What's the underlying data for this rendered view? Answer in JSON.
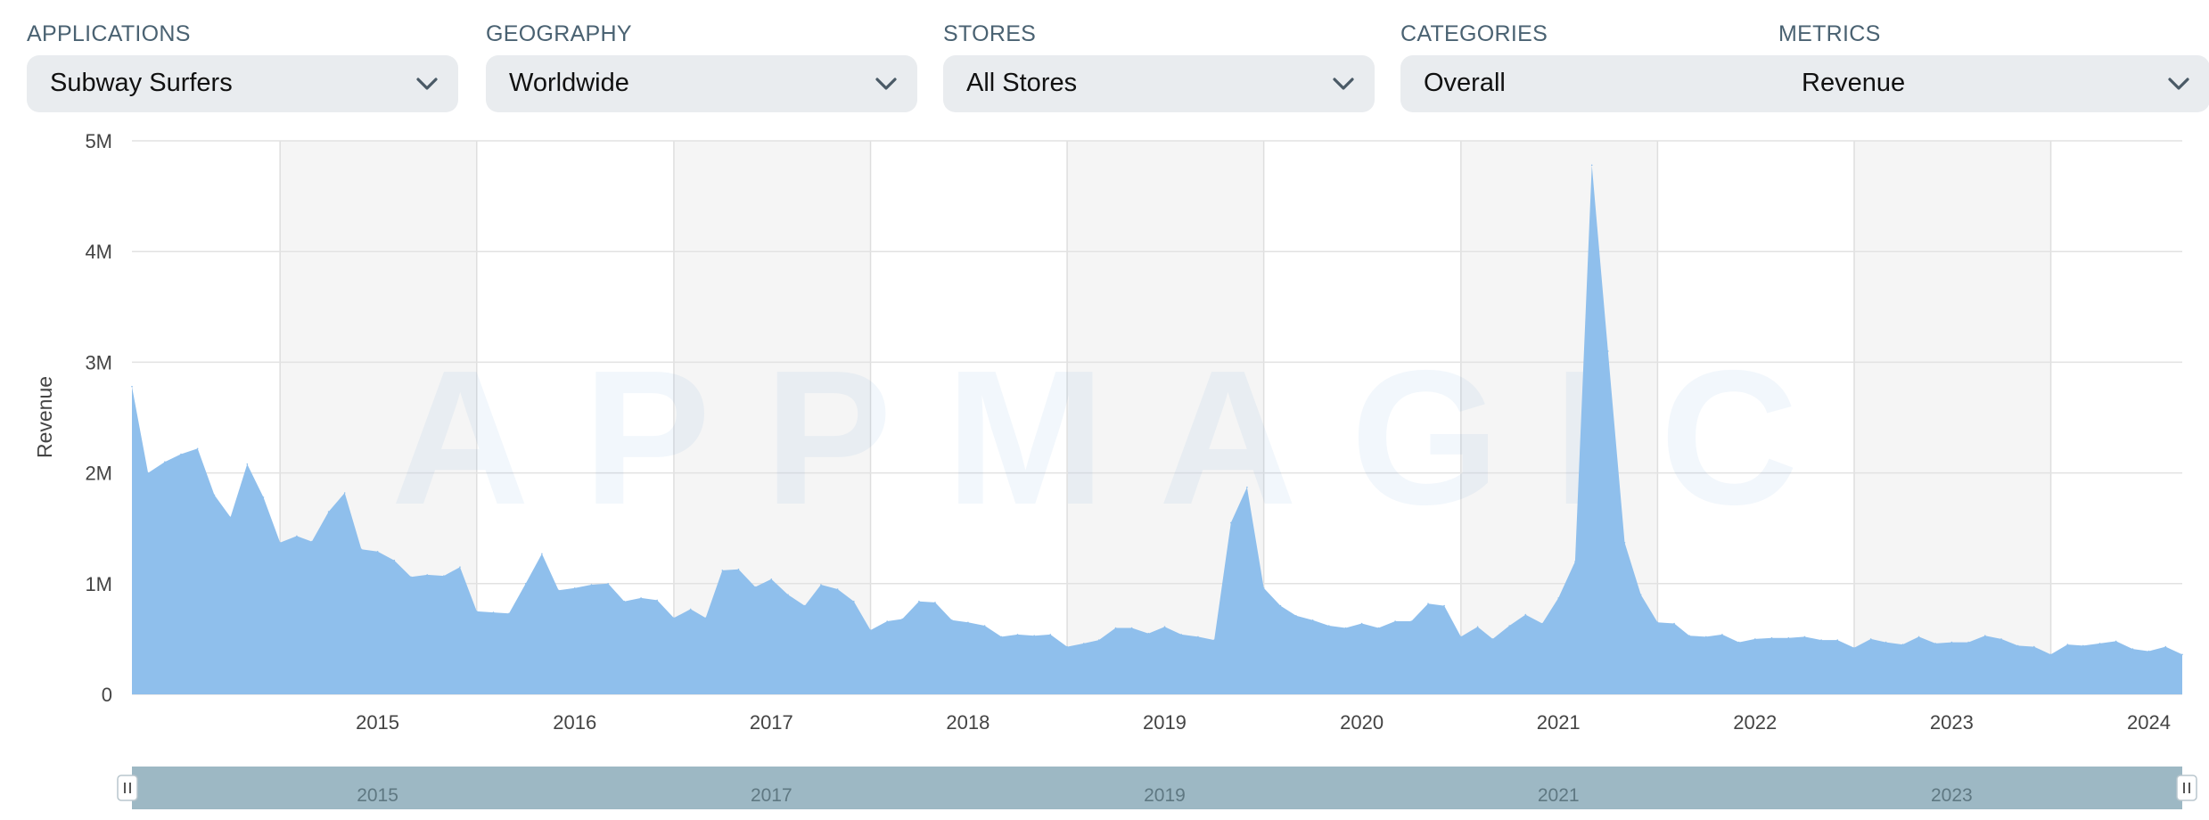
{
  "filters": [
    {
      "label": "APPLICATIONS",
      "value": "Subway Surfers"
    },
    {
      "label": "GEOGRAPHY",
      "value": "Worldwide"
    },
    {
      "label": "STORES",
      "value": "All Stores"
    },
    {
      "label": "CATEGORIES",
      "value": "Overall"
    },
    {
      "label": "METRICS",
      "value": "Revenue"
    }
  ],
  "icons": {
    "dropdown": "chevron-down-icon",
    "handle": "pause-handle-icon"
  },
  "watermark": "APPMAGIC",
  "colors": {
    "area": "#8fbfec",
    "band": "#f5f5f5",
    "navigator": "#9db8c4",
    "label": "#4a6272"
  },
  "chart_data": {
    "type": "area",
    "ylabel": "Revenue",
    "ylim": [
      0,
      5000000
    ],
    "yticks": [
      {
        "value": 0,
        "label": "0"
      },
      {
        "value": 1000000,
        "label": "1M"
      },
      {
        "value": 2000000,
        "label": "2M"
      },
      {
        "value": 3000000,
        "label": "3M"
      },
      {
        "value": 4000000,
        "label": "4M"
      },
      {
        "value": 5000000,
        "label": "5M"
      }
    ],
    "xlim": [
      "2014-04-01",
      "2024-09-01"
    ],
    "xticks": [
      "2015",
      "2016",
      "2017",
      "2018",
      "2019",
      "2020",
      "2021",
      "2022",
      "2023",
      "2024"
    ],
    "navigator_ticks": [
      "2015",
      "2017",
      "2019",
      "2021",
      "2023"
    ],
    "grid": true,
    "series": [
      {
        "color": "#8fbfec",
        "points": [
          [
            "2014-04-01",
            2780000
          ],
          [
            "2014-05-01",
            2000000
          ],
          [
            "2014-06-01",
            2100000
          ],
          [
            "2014-07-01",
            2170000
          ],
          [
            "2014-08-01",
            2220000
          ],
          [
            "2014-09-01",
            1800000
          ],
          [
            "2014-10-01",
            1600000
          ],
          [
            "2014-11-01",
            2080000
          ],
          [
            "2014-12-01",
            1780000
          ],
          [
            "2015-01-01",
            1370000
          ],
          [
            "2015-02-01",
            1430000
          ],
          [
            "2015-03-01",
            1380000
          ],
          [
            "2015-04-01",
            1650000
          ],
          [
            "2015-05-01",
            1820000
          ],
          [
            "2015-06-01",
            1310000
          ],
          [
            "2015-07-01",
            1290000
          ],
          [
            "2015-08-01",
            1210000
          ],
          [
            "2015-09-01",
            1060000
          ],
          [
            "2015-10-01",
            1080000
          ],
          [
            "2015-11-01",
            1070000
          ],
          [
            "2015-12-01",
            1150000
          ],
          [
            "2016-01-01",
            750000
          ],
          [
            "2016-02-01",
            740000
          ],
          [
            "2016-03-01",
            730000
          ],
          [
            "2016-04-01",
            1000000
          ],
          [
            "2016-05-01",
            1270000
          ],
          [
            "2016-06-01",
            940000
          ],
          [
            "2016-07-01",
            960000
          ],
          [
            "2016-08-01",
            990000
          ],
          [
            "2016-09-01",
            1000000
          ],
          [
            "2016-10-01",
            840000
          ],
          [
            "2016-11-01",
            870000
          ],
          [
            "2016-12-01",
            850000
          ],
          [
            "2017-01-01",
            690000
          ],
          [
            "2017-02-01",
            770000
          ],
          [
            "2017-03-01",
            690000
          ],
          [
            "2017-04-01",
            1120000
          ],
          [
            "2017-05-01",
            1130000
          ],
          [
            "2017-06-01",
            970000
          ],
          [
            "2017-07-01",
            1040000
          ],
          [
            "2017-08-01",
            900000
          ],
          [
            "2017-09-01",
            800000
          ],
          [
            "2017-10-01",
            990000
          ],
          [
            "2017-11-01",
            950000
          ],
          [
            "2017-12-01",
            840000
          ],
          [
            "2018-01-01",
            580000
          ],
          [
            "2018-02-01",
            660000
          ],
          [
            "2018-03-01",
            680000
          ],
          [
            "2018-04-01",
            840000
          ],
          [
            "2018-05-01",
            830000
          ],
          [
            "2018-06-01",
            670000
          ],
          [
            "2018-07-01",
            650000
          ],
          [
            "2018-08-01",
            620000
          ],
          [
            "2018-09-01",
            520000
          ],
          [
            "2018-10-01",
            540000
          ],
          [
            "2018-11-01",
            530000
          ],
          [
            "2018-12-01",
            540000
          ],
          [
            "2019-01-01",
            430000
          ],
          [
            "2019-02-01",
            460000
          ],
          [
            "2019-03-01",
            490000
          ],
          [
            "2019-04-01",
            600000
          ],
          [
            "2019-05-01",
            600000
          ],
          [
            "2019-06-01",
            550000
          ],
          [
            "2019-07-01",
            610000
          ],
          [
            "2019-08-01",
            540000
          ],
          [
            "2019-09-01",
            520000
          ],
          [
            "2019-10-01",
            490000
          ],
          [
            "2019-11-01",
            1550000
          ],
          [
            "2019-12-01",
            1870000
          ],
          [
            "2020-01-01",
            960000
          ],
          [
            "2020-02-01",
            800000
          ],
          [
            "2020-03-01",
            710000
          ],
          [
            "2020-04-01",
            670000
          ],
          [
            "2020-05-01",
            620000
          ],
          [
            "2020-06-01",
            600000
          ],
          [
            "2020-07-01",
            640000
          ],
          [
            "2020-08-01",
            600000
          ],
          [
            "2020-09-01",
            660000
          ],
          [
            "2020-10-01",
            660000
          ],
          [
            "2020-11-01",
            820000
          ],
          [
            "2020-12-01",
            800000
          ],
          [
            "2021-01-01",
            520000
          ],
          [
            "2021-02-01",
            610000
          ],
          [
            "2021-03-01",
            500000
          ],
          [
            "2021-04-01",
            620000
          ],
          [
            "2021-05-01",
            720000
          ],
          [
            "2021-06-01",
            640000
          ],
          [
            "2021-07-01",
            870000
          ],
          [
            "2021-08-01",
            1200000
          ],
          [
            "2021-09-01",
            4780000
          ],
          [
            "2021-10-01",
            3100000
          ],
          [
            "2021-11-01",
            1370000
          ],
          [
            "2021-12-01",
            900000
          ],
          [
            "2022-01-01",
            650000
          ],
          [
            "2022-02-01",
            640000
          ],
          [
            "2022-03-01",
            530000
          ],
          [
            "2022-04-01",
            520000
          ],
          [
            "2022-05-01",
            540000
          ],
          [
            "2022-06-01",
            470000
          ],
          [
            "2022-07-01",
            500000
          ],
          [
            "2022-08-01",
            510000
          ],
          [
            "2022-09-01",
            510000
          ],
          [
            "2022-10-01",
            520000
          ],
          [
            "2022-11-01",
            490000
          ],
          [
            "2022-12-01",
            490000
          ],
          [
            "2023-01-01",
            420000
          ],
          [
            "2023-02-01",
            500000
          ],
          [
            "2023-03-01",
            470000
          ],
          [
            "2023-04-01",
            450000
          ],
          [
            "2023-05-01",
            520000
          ],
          [
            "2023-06-01",
            460000
          ],
          [
            "2023-07-01",
            470000
          ],
          [
            "2023-08-01",
            470000
          ],
          [
            "2023-09-01",
            530000
          ],
          [
            "2023-10-01",
            500000
          ],
          [
            "2023-11-01",
            440000
          ],
          [
            "2023-12-01",
            430000
          ],
          [
            "2024-01-01",
            360000
          ],
          [
            "2024-02-01",
            450000
          ],
          [
            "2024-03-01",
            440000
          ],
          [
            "2024-04-01",
            460000
          ],
          [
            "2024-05-01",
            480000
          ],
          [
            "2024-06-01",
            410000
          ],
          [
            "2024-07-01",
            390000
          ],
          [
            "2024-08-01",
            430000
          ],
          [
            "2024-09-01",
            360000
          ]
        ]
      }
    ]
  }
}
